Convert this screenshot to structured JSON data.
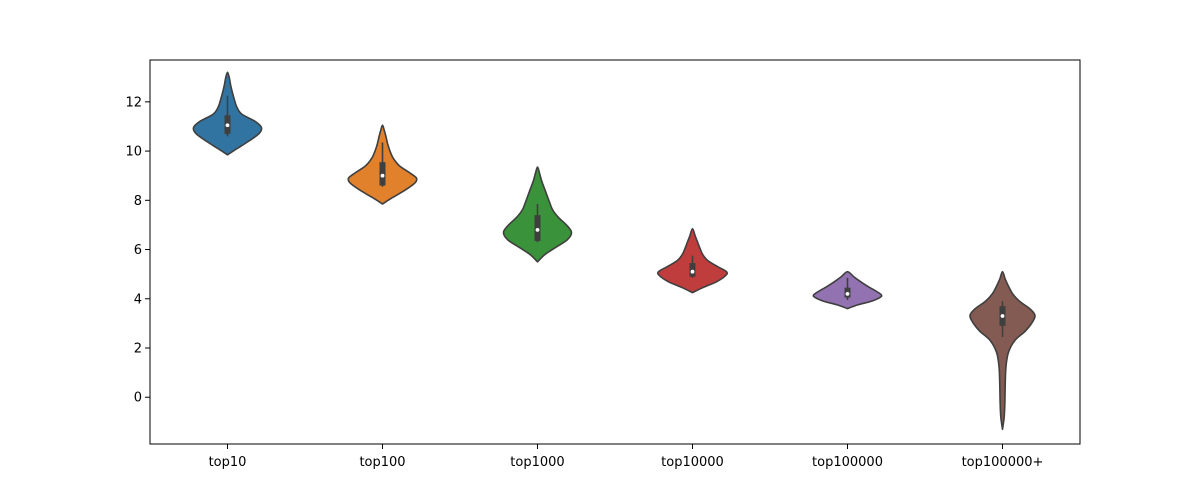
{
  "chart_data": {
    "type": "violin",
    "title": "",
    "xlabel": "",
    "ylabel": "",
    "categories": [
      "top10",
      "top100",
      "top1000",
      "top10000",
      "top100000",
      "top100000+"
    ],
    "ylim": [
      -1.9,
      13.7
    ],
    "yticks": [
      0,
      2,
      4,
      6,
      8,
      10,
      12
    ],
    "grid": false,
    "colors": [
      "#3274a1",
      "#e1812c",
      "#3a923a",
      "#c03d3e",
      "#9372b2",
      "#845b53"
    ],
    "series": [
      {
        "category": "top10",
        "min": 9.85,
        "max": 13.2,
        "q1": 10.7,
        "median": 11.05,
        "q3": 11.45,
        "whisker_low": 10.6,
        "whisker_high": 12.25,
        "density": [
          [
            9.85,
            0.0
          ],
          [
            10.1,
            0.28
          ],
          [
            10.4,
            0.62
          ],
          [
            10.7,
            0.92
          ],
          [
            10.95,
            1.0
          ],
          [
            11.2,
            0.82
          ],
          [
            11.5,
            0.42
          ],
          [
            11.8,
            0.27
          ],
          [
            12.1,
            0.2
          ],
          [
            12.4,
            0.14
          ],
          [
            12.7,
            0.09
          ],
          [
            13.0,
            0.05
          ],
          [
            13.2,
            0.0
          ]
        ]
      },
      {
        "category": "top100",
        "min": 7.85,
        "max": 11.05,
        "q1": 8.6,
        "median": 9.0,
        "q3": 9.55,
        "whisker_low": 8.55,
        "whisker_high": 10.35,
        "density": [
          [
            7.85,
            0.0
          ],
          [
            8.1,
            0.28
          ],
          [
            8.4,
            0.65
          ],
          [
            8.7,
            0.95
          ],
          [
            8.9,
            1.0
          ],
          [
            9.1,
            0.82
          ],
          [
            9.4,
            0.5
          ],
          [
            9.7,
            0.32
          ],
          [
            10.0,
            0.22
          ],
          [
            10.3,
            0.15
          ],
          [
            10.6,
            0.1
          ],
          [
            10.85,
            0.05
          ],
          [
            11.05,
            0.0
          ]
        ]
      },
      {
        "category": "top1000",
        "min": 5.5,
        "max": 9.35,
        "q1": 6.35,
        "median": 6.8,
        "q3": 7.4,
        "whisker_low": 6.3,
        "whisker_high": 7.85,
        "density": [
          [
            5.5,
            0.0
          ],
          [
            5.8,
            0.22
          ],
          [
            6.1,
            0.55
          ],
          [
            6.4,
            0.88
          ],
          [
            6.7,
            1.0
          ],
          [
            7.0,
            0.85
          ],
          [
            7.3,
            0.62
          ],
          [
            7.6,
            0.45
          ],
          [
            7.9,
            0.36
          ],
          [
            8.2,
            0.28
          ],
          [
            8.5,
            0.2
          ],
          [
            8.8,
            0.12
          ],
          [
            9.1,
            0.06
          ],
          [
            9.35,
            0.0
          ]
        ]
      },
      {
        "category": "top10000",
        "min": 4.25,
        "max": 6.85,
        "q1": 4.9,
        "median": 5.1,
        "q3": 5.45,
        "whisker_low": 4.85,
        "whisker_high": 5.75,
        "density": [
          [
            4.25,
            0.0
          ],
          [
            4.45,
            0.3
          ],
          [
            4.7,
            0.72
          ],
          [
            4.95,
            0.98
          ],
          [
            5.1,
            1.0
          ],
          [
            5.3,
            0.75
          ],
          [
            5.55,
            0.45
          ],
          [
            5.8,
            0.3
          ],
          [
            6.05,
            0.22
          ],
          [
            6.3,
            0.15
          ],
          [
            6.55,
            0.08
          ],
          [
            6.85,
            0.0
          ]
        ]
      },
      {
        "category": "top100000",
        "min": 3.6,
        "max": 5.1,
        "q1": 4.05,
        "median": 4.2,
        "q3": 4.45,
        "whisker_low": 3.95,
        "whisker_high": 4.85,
        "density": [
          [
            3.6,
            0.0
          ],
          [
            3.75,
            0.3
          ],
          [
            3.9,
            0.7
          ],
          [
            4.05,
            0.95
          ],
          [
            4.15,
            1.0
          ],
          [
            4.3,
            0.85
          ],
          [
            4.5,
            0.6
          ],
          [
            4.7,
            0.38
          ],
          [
            4.9,
            0.18
          ],
          [
            5.1,
            0.0
          ]
        ]
      },
      {
        "category": "top100000+",
        "min": -1.3,
        "max": 5.1,
        "q1": 2.9,
        "median": 3.3,
        "q3": 3.7,
        "whisker_low": 2.45,
        "whisker_high": 3.9,
        "density": [
          [
            -1.3,
            0.0
          ],
          [
            -0.8,
            0.05
          ],
          [
            -0.2,
            0.07
          ],
          [
            0.5,
            0.08
          ],
          [
            1.2,
            0.1
          ],
          [
            1.8,
            0.17
          ],
          [
            2.3,
            0.36
          ],
          [
            2.7,
            0.68
          ],
          [
            3.1,
            0.9
          ],
          [
            3.35,
            0.95
          ],
          [
            3.6,
            0.8
          ],
          [
            3.9,
            0.5
          ],
          [
            4.2,
            0.3
          ],
          [
            4.5,
            0.18
          ],
          [
            4.8,
            0.08
          ],
          [
            5.1,
            0.0
          ]
        ]
      }
    ]
  }
}
